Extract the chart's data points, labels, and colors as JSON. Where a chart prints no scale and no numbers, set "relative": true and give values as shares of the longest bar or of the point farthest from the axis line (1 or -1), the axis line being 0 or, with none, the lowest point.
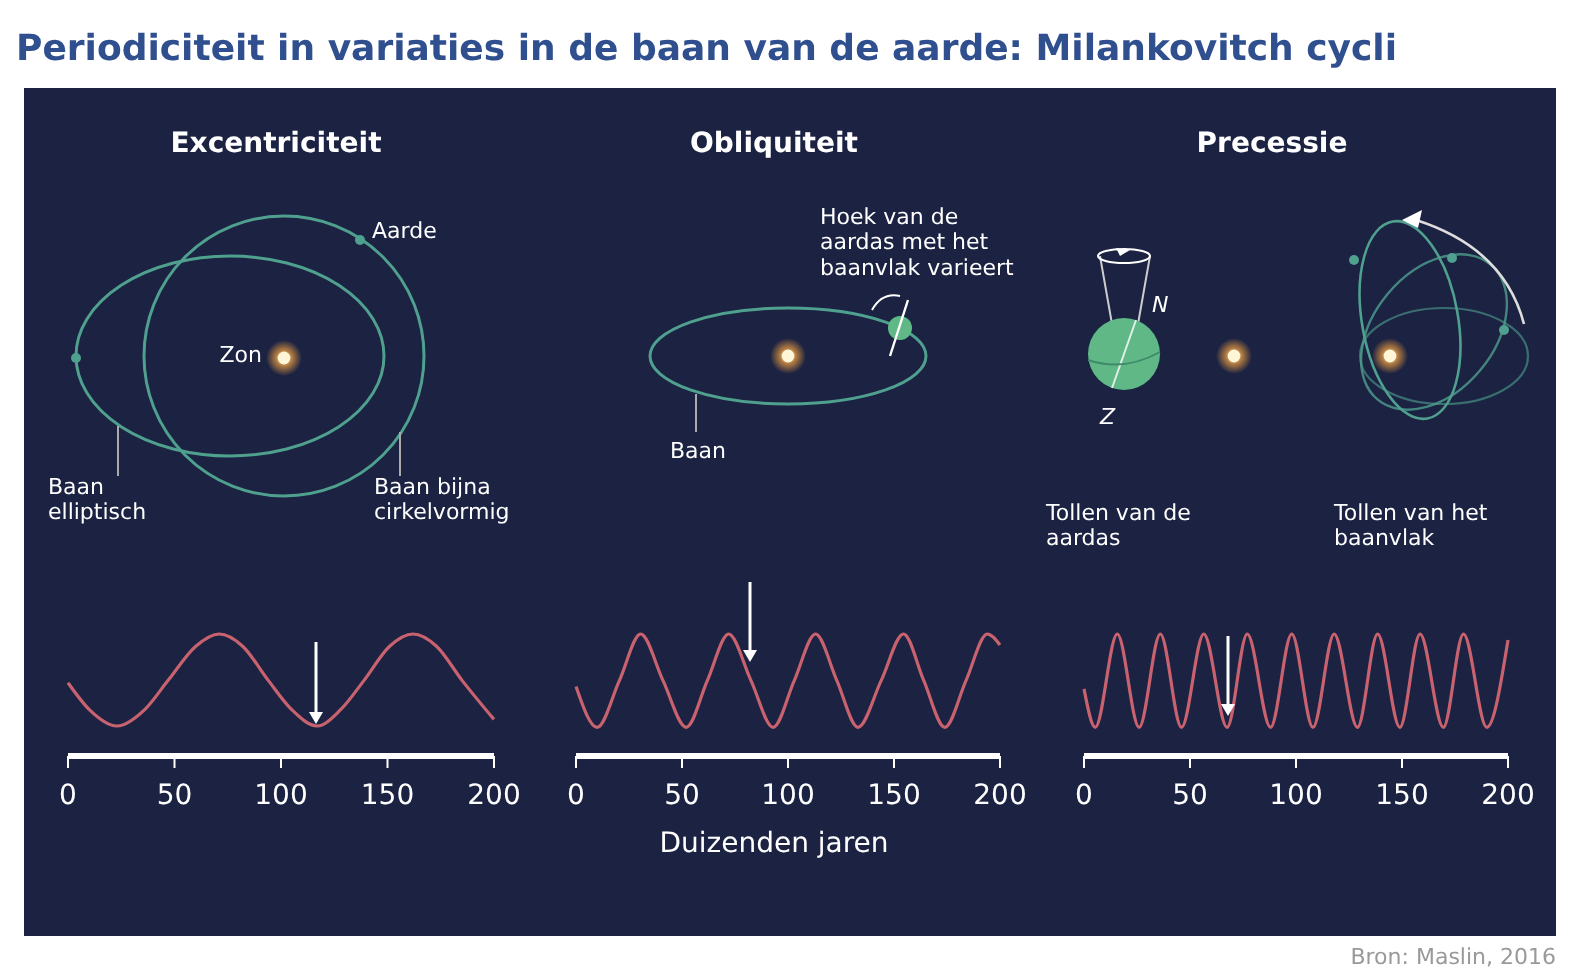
{
  "chart_data": [
    {
      "type": "line",
      "title": "Excentriciteit",
      "annotations": [
        "Periodiciteit in variaties in de baan van de aarde: Milankovitch cycli",
        "Aarde",
        "Zon",
        "Baan\nelliptisch",
        "Baan bijna\ncirkelvormig",
        "Bron: Maslin, 2016"
      ],
      "relative": true,
      "xlim": [
        0,
        200
      ],
      "xticks": [
        0,
        50,
        100,
        150,
        200
      ],
      "series": [
        {
          "color": "#c9626f",
          "x": [
            0,
            10,
            23,
            36,
            47,
            60,
            71,
            82,
            94,
            105,
            117,
            128,
            139,
            151,
            162,
            173,
            185,
            200
          ],
          "values": [
            0.6,
            0.38,
            0.246,
            0.38,
            0.62,
            0.9,
            1,
            0.9,
            0.62,
            0.38,
            0.246,
            0.38,
            0.62,
            0.9,
            1,
            0.9,
            0.62,
            0.3
          ]
        }
      ]
    },
    {
      "type": "line",
      "title": "Obliquiteit",
      "xlabel": "Duizenden jaren",
      "annotations": [
        "Hoek van de\naardas met het\nbaanvlak varieert",
        "Baan"
      ],
      "relative": true,
      "xlim": [
        0,
        200
      ],
      "xticks": [
        0,
        50,
        100,
        150,
        200
      ],
      "series": [
        {
          "color": "#c9626f",
          "x": [
            0,
            10,
            20.5,
            30.5,
            41,
            52,
            62,
            72,
            82.5,
            93,
            103,
            113,
            123,
            133,
            144,
            154.5,
            164,
            174,
            184,
            194,
            200
          ],
          "values": [
            0.57,
            0.235,
            0.62,
            1,
            0.62,
            0.235,
            0.62,
            1,
            0.62,
            0.235,
            0.62,
            1,
            0.62,
            0.235,
            0.62,
            1,
            0.62,
            0.235,
            0.62,
            1,
            0.91
          ]
        }
      ]
    },
    {
      "type": "line",
      "title": "Precessie",
      "annotations": [
        "N",
        "Z",
        "Tollen van de\naardas",
        "Tollen van het\nbaanvlak"
      ],
      "relative": true,
      "xlim": [
        0,
        200
      ],
      "xticks": [
        0,
        50,
        100,
        150,
        200
      ],
      "series": [
        {
          "color": "#c9626f",
          "x": [
            0,
            5.3,
            15.7,
            26,
            36,
            46,
            56.5,
            67.5,
            77,
            88,
            98,
            108,
            118,
            129,
            138.5,
            149,
            158.5,
            169.5,
            179,
            190,
            200
          ],
          "values": [
            0.55,
            0.235,
            1,
            0.235,
            1,
            0.235,
            1,
            0.235,
            1,
            0.235,
            1,
            0.235,
            1,
            0.235,
            1,
            0.235,
            1,
            0.235,
            1,
            0.235,
            0.95
          ]
        }
      ]
    }
  ]
}
